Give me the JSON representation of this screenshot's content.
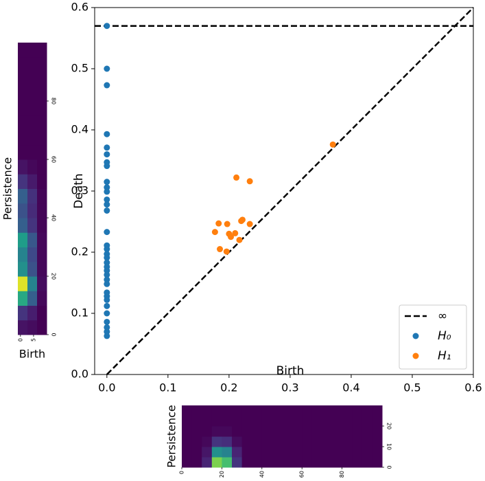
{
  "chart_data": [
    {
      "type": "scatter",
      "x_label": "Birth",
      "y_label": "Death",
      "xlim": [
        -0.02,
        0.6
      ],
      "ylim": [
        0,
        0.6
      ],
      "xticks": [
        {
          "value": 0,
          "label": "0.0"
        },
        0.1,
        0.2,
        0.3,
        0.4,
        0.5,
        0.6
      ],
      "yticks": [
        {
          "value": 0,
          "label": "0.0"
        },
        0.1,
        0.2,
        0.3,
        0.4,
        0.5,
        0.6
      ],
      "diagonal": true,
      "reference_lines": [
        {
          "name": "∞",
          "value": 0.57,
          "color": "#000000"
        }
      ],
      "legend": "lower right",
      "series": [
        {
          "name": "H₀",
          "color": "#1f77b4",
          "x": [
            0,
            0,
            0,
            0,
            0,
            0,
            0,
            0,
            0,
            0,
            0,
            0,
            0,
            0,
            0,
            0,
            0,
            0,
            0,
            0,
            0,
            0,
            0,
            0,
            0,
            0,
            0,
            0,
            0,
            0,
            0,
            0,
            0,
            0
          ],
          "values": [
            0.57,
            0.5,
            0.473,
            0.393,
            0.371,
            0.36,
            0.347,
            0.341,
            0.315,
            0.306,
            0.299,
            0.286,
            0.278,
            0.268,
            0.233,
            0.211,
            0.205,
            0.197,
            0.191,
            0.183,
            0.176,
            0.17,
            0.163,
            0.155,
            0.148,
            0.134,
            0.128,
            0.122,
            0.112,
            0.1,
            0.086,
            0.077,
            0.07,
            0.063
          ]
        },
        {
          "name": "H₁",
          "color": "#ff7f0e",
          "x": [
            0.37,
            0.212,
            0.234,
            0.22,
            0.222,
            0.183,
            0.197,
            0.234,
            0.177,
            0.2,
            0.21,
            0.203,
            0.217,
            0.185,
            0.196
          ],
          "values": [
            0.376,
            0.322,
            0.316,
            0.251,
            0.253,
            0.247,
            0.246,
            0.246,
            0.233,
            0.23,
            0.231,
            0.225,
            0.22,
            0.205,
            0.201
          ]
        }
      ]
    },
    {
      "type": "heatmap",
      "colormap": "viridis",
      "zlim": [
        0,
        1
      ],
      "x_label": "Birth",
      "y_label": "Persistence",
      "xlim": [
        -1,
        10
      ],
      "ylim": [
        0,
        100
      ],
      "xticks": [
        0,
        5
      ],
      "yticks": [
        0,
        20,
        40,
        60,
        80
      ],
      "values": [
        [
          0.05,
          0.03,
          0
        ],
        [
          0.15,
          0.08,
          0
        ],
        [
          0.6,
          0.3,
          0.02
        ],
        [
          0.95,
          0.45,
          0.03
        ],
        [
          0.5,
          0.25,
          0.02
        ],
        [
          0.45,
          0.22,
          0.02
        ],
        [
          0.55,
          0.27,
          0.02
        ],
        [
          0.3,
          0.15,
          0.01
        ],
        [
          0.25,
          0.12,
          0.01
        ],
        [
          0.3,
          0.14,
          0.01
        ],
        [
          0.15,
          0.07,
          0
        ],
        [
          0.05,
          0.02,
          0
        ],
        [
          0,
          0,
          0
        ],
        [
          0,
          0,
          0
        ],
        [
          0,
          0,
          0
        ],
        [
          0,
          0,
          0
        ],
        [
          0,
          0,
          0
        ],
        [
          0,
          0,
          0
        ],
        [
          0,
          0,
          0
        ],
        [
          0,
          0,
          0
        ]
      ]
    },
    {
      "type": "heatmap",
      "colormap": "viridis",
      "zlim": [
        0,
        1
      ],
      "y_label": "Persistence",
      "xlim": [
        0,
        100
      ],
      "ylim": [
        0,
        30
      ],
      "xticks": [
        0,
        20,
        40,
        60,
        80
      ],
      "yticks": [
        0,
        10,
        20
      ],
      "values": [
        [
          0,
          0,
          0.1,
          0.8,
          0.7,
          0.15,
          0,
          0,
          0,
          0,
          0,
          0,
          0,
          0,
          0,
          0,
          0,
          0,
          0,
          0
        ],
        [
          0,
          0,
          0.06,
          0.5,
          0.45,
          0.1,
          0,
          0,
          0,
          0,
          0,
          0,
          0,
          0,
          0,
          0,
          0,
          0,
          0,
          0
        ],
        [
          0,
          0,
          0.02,
          0.15,
          0.13,
          0.03,
          0,
          0,
          0,
          0,
          0,
          0,
          0,
          0,
          0,
          0,
          0,
          0,
          0,
          0
        ],
        [
          0,
          0,
          0,
          0.02,
          0.02,
          0,
          0,
          0,
          0,
          0,
          0,
          0,
          0,
          0,
          0,
          0,
          0,
          0,
          0,
          0
        ],
        [
          0,
          0,
          0,
          0,
          0,
          0,
          0,
          0,
          0,
          0,
          0,
          0,
          0,
          0,
          0,
          0,
          0,
          0,
          0,
          0
        ],
        [
          0,
          0,
          0,
          0,
          0,
          0,
          0,
          0,
          0,
          0,
          0,
          0,
          0,
          0,
          0,
          0,
          0,
          0,
          0,
          0
        ]
      ]
    }
  ]
}
